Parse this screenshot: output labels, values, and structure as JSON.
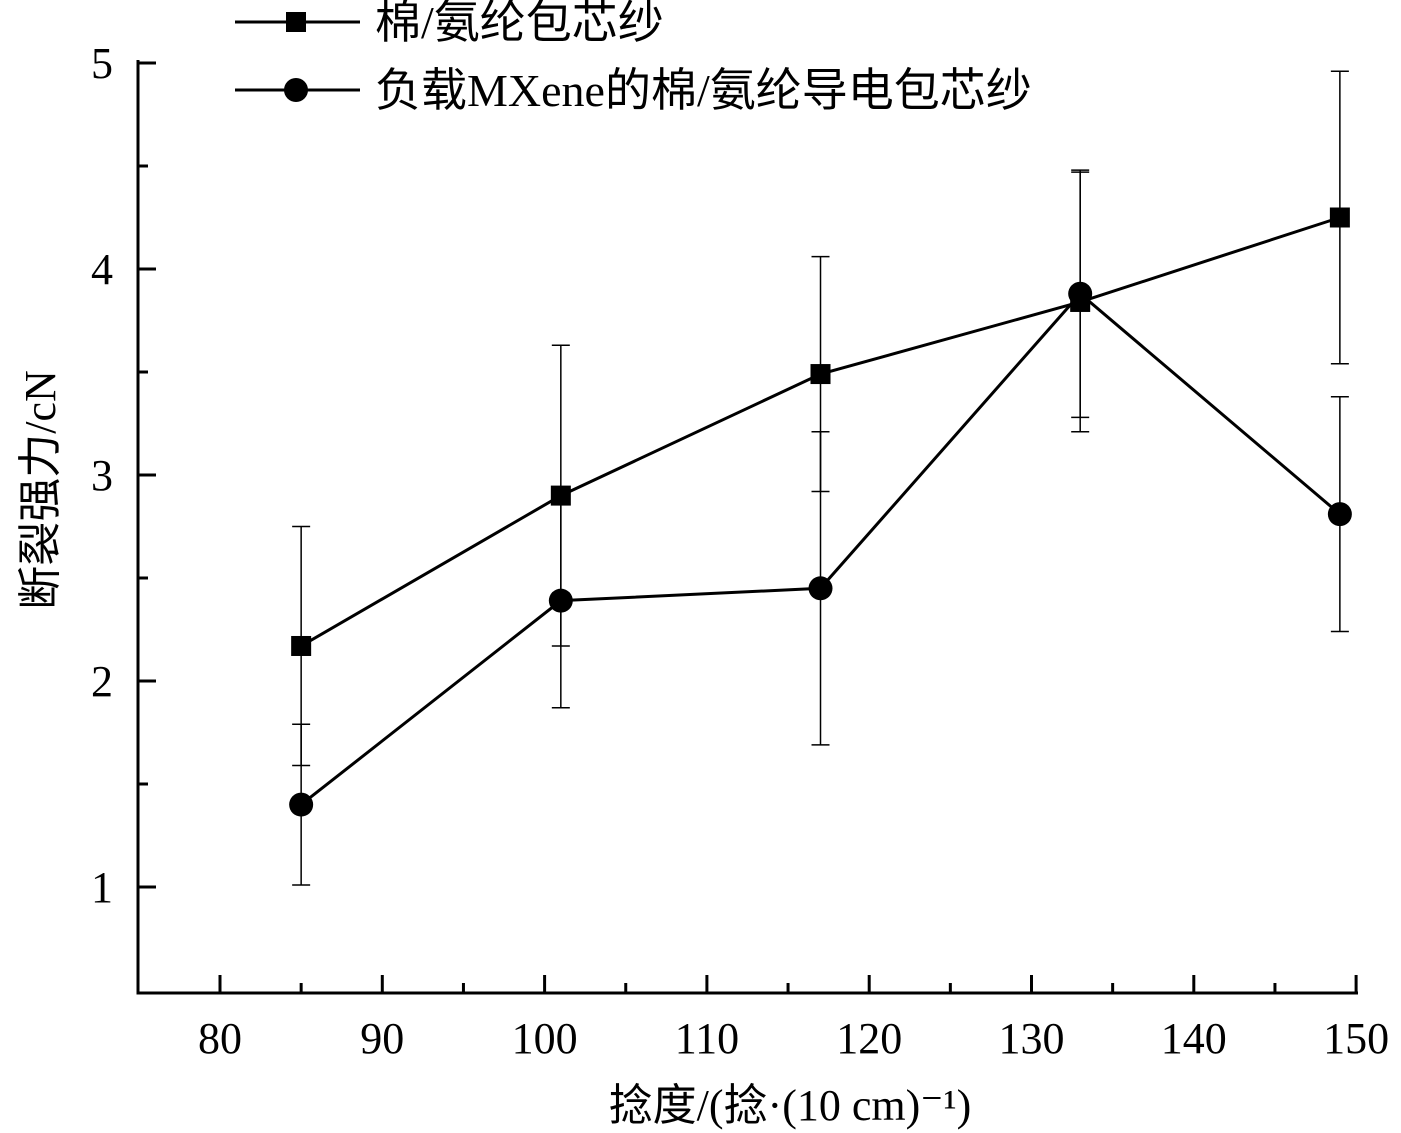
{
  "chart_data": {
    "type": "line",
    "title": "",
    "xlabel": "捻度/(捻·(10 cm)⁻¹)",
    "ylabel": "断裂强力/cN",
    "xlim": [
      75,
      150
    ],
    "ylim": [
      0.5,
      5
    ],
    "xticks": [
      80,
      90,
      100,
      110,
      120,
      130,
      140,
      150
    ],
    "yticks": [
      1,
      2,
      3,
      4,
      5
    ],
    "grid": false,
    "legend_position": "top-left",
    "x": [
      85,
      101,
      117,
      133,
      149
    ],
    "series": [
      {
        "name": "棉/氨纶包芯纱",
        "marker": "square",
        "values": [
          2.17,
          2.9,
          3.49,
          3.84,
          4.25
        ],
        "errors": [
          0.58,
          0.73,
          0.57,
          0.63,
          0.71
        ]
      },
      {
        "name": "负载MXene的棉/氨纶导电包芯纱",
        "marker": "circle",
        "values": [
          1.4,
          2.39,
          2.45,
          3.88,
          2.81
        ],
        "errors": [
          0.39,
          0.52,
          0.76,
          0.6,
          0.57
        ]
      }
    ]
  }
}
